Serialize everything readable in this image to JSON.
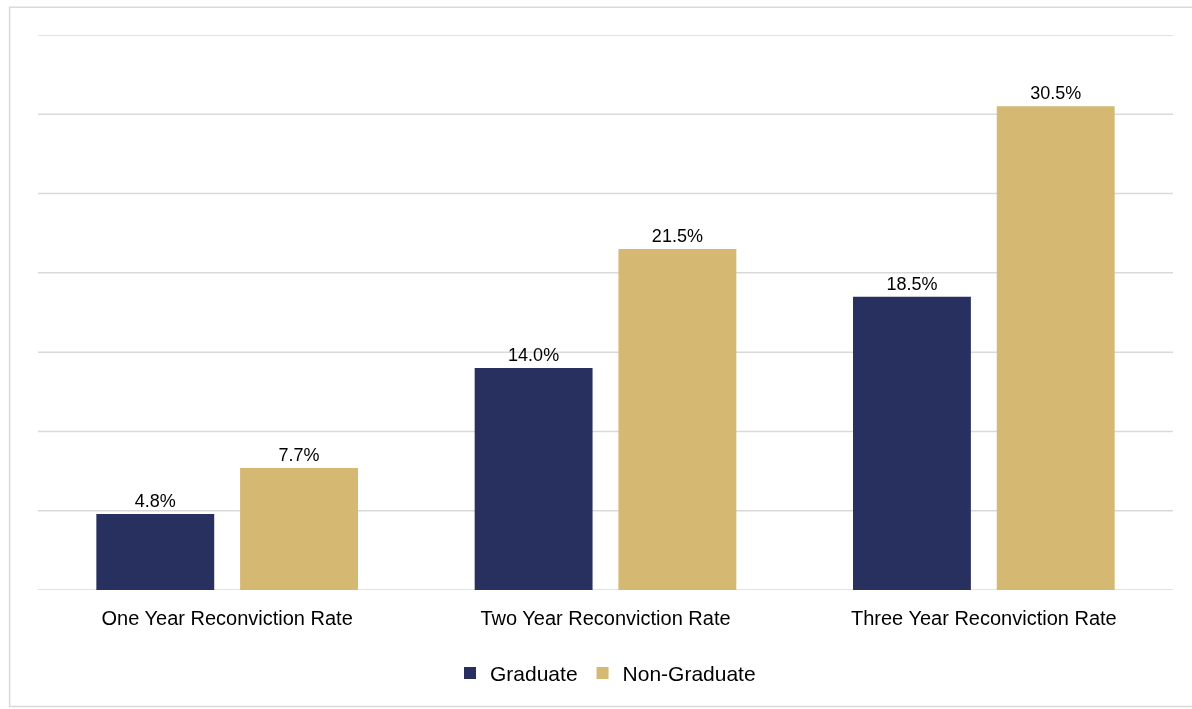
{
  "chart_data": {
    "type": "bar",
    "categories": [
      "One Year Reconviction Rate",
      "Two Year Reconviction Rate",
      "Three Year Reconviction Rate"
    ],
    "series": [
      {
        "name": "Graduate",
        "color": "#28305f",
        "values": [
          4.8,
          14.0,
          18.5
        ],
        "value_labels": [
          "4.8%",
          "14.0%",
          "18.5%"
        ]
      },
      {
        "name": "Non-Graduate",
        "color": "#d5b872",
        "values": [
          7.7,
          21.5,
          30.5
        ],
        "value_labels": [
          "7.7%",
          "21.5%",
          "30.5%"
        ]
      }
    ],
    "ylim": [
      0,
      35
    ],
    "yticks": [
      {
        "value": 0,
        "label": null
      },
      {
        "value": 5,
        "label": null
      },
      {
        "value": 10,
        "label": null
      },
      {
        "value": 15,
        "label": null
      },
      {
        "value": 20,
        "label": null
      },
      {
        "value": 25,
        "label": null
      },
      {
        "value": 30,
        "label": null
      },
      {
        "value": 35,
        "label": null
      }
    ],
    "grid": "y",
    "legend": "bottom",
    "tick_labels": "x"
  }
}
